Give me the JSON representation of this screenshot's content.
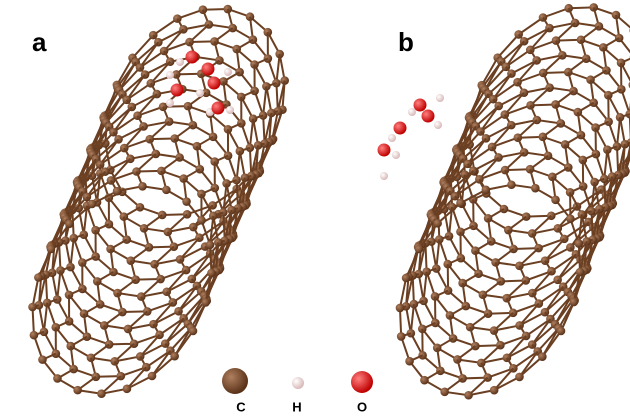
{
  "panels": [
    {
      "label": "a"
    },
    {
      "label": "b"
    }
  ],
  "legend": [
    {
      "label": "C"
    },
    {
      "label": "H"
    },
    {
      "label": "O"
    }
  ]
}
